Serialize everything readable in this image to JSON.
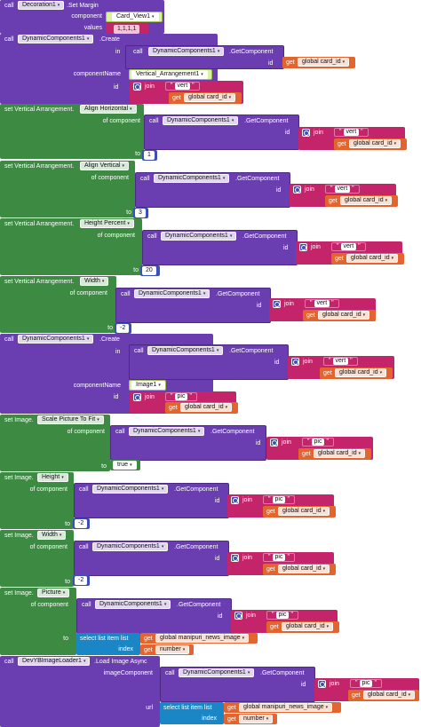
{
  "b1": {
    "call": "call",
    "component_dd": "Decoration1",
    "method": ".Set Margin",
    "component_label": "component",
    "component_value": "Card_View1",
    "values_label": "values",
    "values_value": "1,1,1,1"
  },
  "b2": {
    "call": "call",
    "component_dd": "DynamicComponents1",
    "method": ".Create",
    "in_label": "in",
    "inner_call": "call",
    "inner_dd": "DynamicComponents1",
    "inner_method": ".GetComponent",
    "id_label": "id",
    "get": "get",
    "get_dd": "global card_id",
    "componentName_label": "componentName",
    "componentName_value": "Vertical_Arrangement1",
    "id2_label": "id",
    "join": "join",
    "str": "vert",
    "get2": "get",
    "get2_dd": "global card_id"
  },
  "b3": {
    "set": "set Vertical Arrangement.",
    "prop_dd": "Align Horizontal",
    "of_component": "of component",
    "call": "call",
    "dd": "DynamicComponents1",
    "method": ".GetComponent",
    "id": "id",
    "join": "join",
    "str": "vert",
    "get": "get",
    "get_dd": "global card_id",
    "to": "to",
    "to_value": "1"
  },
  "b4": {
    "set": "set Vertical Arrangement.",
    "prop_dd": "Align Vertical",
    "of_component": "of component",
    "call": "call",
    "dd": "DynamicComponents1",
    "method": ".GetComponent",
    "id": "id",
    "join": "join",
    "str": "vert",
    "get": "get",
    "get_dd": "global card_id",
    "to": "to",
    "to_value": "3"
  },
  "b5": {
    "set": "set Vertical Arrangement.",
    "prop_dd": "Height Percent",
    "of_component": "of component",
    "call": "call",
    "dd": "DynamicComponents1",
    "method": ".GetComponent",
    "id": "id",
    "join": "join",
    "str": "vert",
    "get": "get",
    "get_dd": "global card_id",
    "to": "to",
    "to_value": "20"
  },
  "b6": {
    "set": "set Vertical Arrangement.",
    "prop_dd": "Width",
    "of_component": "of component",
    "call": "call",
    "dd": "DynamicComponents1",
    "method": ".GetComponent",
    "id": "id",
    "join": "join",
    "str": "vert",
    "get": "get",
    "get_dd": "global card_id",
    "to": "to",
    "to_value": "-2"
  },
  "b7": {
    "call": "call",
    "component_dd": "DynamicComponents1",
    "method": ".Create",
    "in_label": "in",
    "inner_call": "call",
    "inner_dd": "DynamicComponents1",
    "inner_method": ".GetComponent",
    "id_label": "id",
    "join": "join",
    "str": "vert",
    "get": "get",
    "get_dd": "global card_id",
    "componentName_label": "componentName",
    "componentName_value": "Image1",
    "id2_label": "id",
    "join2": "join",
    "str2": "pic",
    "get2": "get",
    "get2_dd": "global card_id"
  },
  "b8": {
    "set": "set Image.",
    "prop_dd": "Scale Picture To Fit",
    "of_component": "of component",
    "call": "call",
    "dd": "DynamicComponents1",
    "method": ".GetComponent",
    "id": "id",
    "join": "join",
    "str": "pic",
    "get": "get",
    "get_dd": "global card_id",
    "to": "to",
    "to_value": "true"
  },
  "b9": {
    "set": "set Image.",
    "prop_dd": "Height",
    "of_component": "of component",
    "call": "call",
    "dd": "DynamicComponents1",
    "method": ".GetComponent",
    "id": "id",
    "join": "join",
    "str": "pic",
    "get": "get",
    "get_dd": "global card_id",
    "to": "to",
    "to_value": "-2"
  },
  "b10": {
    "set": "set Image.",
    "prop_dd": "Width",
    "of_component": "of component",
    "call": "call",
    "dd": "DynamicComponents1",
    "method": ".GetComponent",
    "id": "id",
    "join": "join",
    "str": "pic",
    "get": "get",
    "get_dd": "global card_id",
    "to": "to",
    "to_value": "-2"
  },
  "b11": {
    "set": "set Image.",
    "prop_dd": "Picture",
    "of_component": "of component",
    "call": "call",
    "dd": "DynamicComponents1",
    "method": ".GetComponent",
    "id": "id",
    "join": "join",
    "str": "pic",
    "get": "get",
    "get_dd": "global card_id",
    "to": "to",
    "select": "select list item  list",
    "get_list": "get",
    "get_list_dd": "global manipuri_news_image",
    "index": "index",
    "get_idx": "get",
    "get_idx_dd": "number"
  },
  "b12": {
    "call": "call",
    "component_dd": "DevYBImageLoader1",
    "method": ".Load Image Async",
    "imageComponent": "imageComponent",
    "inner_call": "call",
    "inner_dd": "DynamicComponents1",
    "inner_method": ".GetComponent",
    "id": "id",
    "join": "join",
    "str": "pic",
    "get": "get",
    "get_dd": "global card_id",
    "url": "url",
    "select": "select list item  list",
    "get_list": "get",
    "get_list_dd": "global manipuri_news_image",
    "index": "index",
    "get_idx": "get",
    "get_idx_dd": "number"
  }
}
